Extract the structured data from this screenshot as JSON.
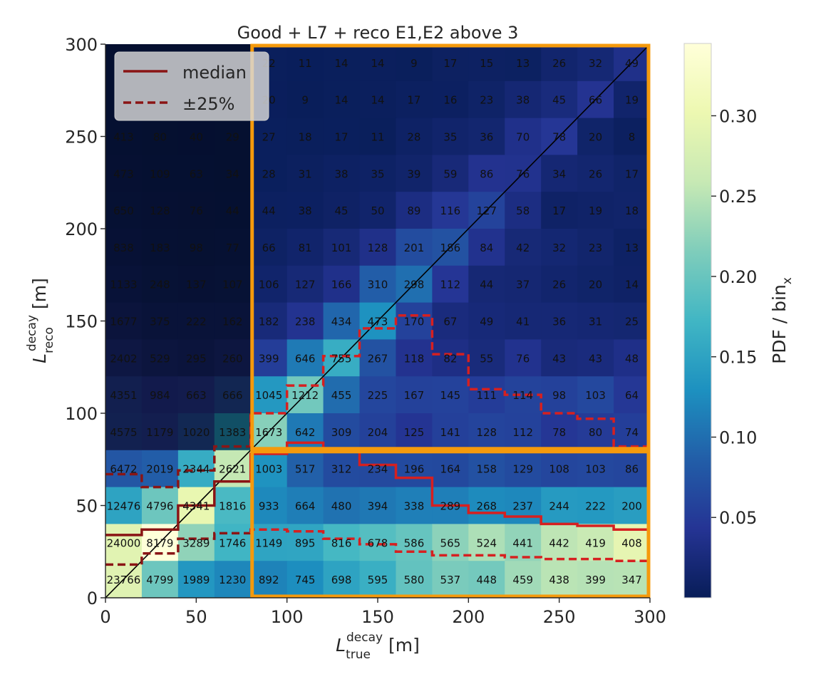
{
  "chart_data": {
    "type": "heatmap",
    "title": "Good + L7 + reco E1,E2 above 3",
    "xlabel": {
      "main": "L",
      "sub": "true",
      "sup": "decay",
      "unit": " [m]"
    },
    "ylabel": {
      "main": "L",
      "sub": "reco",
      "sup": "decay",
      "unit": " [m]"
    },
    "colorbar_label": {
      "main": "PDF / bin",
      "sub": "x"
    },
    "x_edges": [
      0,
      20,
      40,
      60,
      80,
      100,
      120,
      140,
      160,
      180,
      200,
      220,
      240,
      260,
      280,
      300
    ],
    "y_edges": [
      0,
      20,
      40,
      60,
      80,
      100,
      120,
      140,
      160,
      180,
      200,
      220,
      240,
      260,
      280,
      300
    ],
    "xlim": [
      0,
      300
    ],
    "ylim": [
      0,
      300
    ],
    "x_ticks": [
      "0",
      "50",
      "100",
      "150",
      "200",
      "250",
      "300"
    ],
    "y_ticks": [
      "0",
      "50",
      "100",
      "150",
      "200",
      "250",
      "300"
    ],
    "colorbar_range": [
      0,
      0.345
    ],
    "colorbar_ticks": [
      "0.05",
      "0.10",
      "0.15",
      "0.20",
      "0.25",
      "0.30"
    ],
    "counts_rows_top_to_bottom": [
      [
        "",
        "",
        "",
        "",
        "22",
        "11",
        "14",
        "14",
        "9",
        "17",
        "15",
        "13",
        "26",
        "32",
        "49"
      ],
      [
        "",
        "",
        "",
        "",
        "20",
        "9",
        "14",
        "14",
        "17",
        "16",
        "23",
        "38",
        "45",
        "66",
        "19"
      ],
      [
        "413",
        "80",
        "40",
        "29",
        "27",
        "18",
        "17",
        "11",
        "28",
        "35",
        "36",
        "70",
        "78",
        "20",
        "8"
      ],
      [
        "473",
        "109",
        "63",
        "34",
        "28",
        "31",
        "38",
        "35",
        "39",
        "59",
        "86",
        "76",
        "34",
        "26",
        "17"
      ],
      [
        "650",
        "128",
        "76",
        "44",
        "44",
        "38",
        "45",
        "50",
        "89",
        "116",
        "127",
        "58",
        "17",
        "19",
        "18"
      ],
      [
        "838",
        "183",
        "98",
        "77",
        "66",
        "81",
        "101",
        "128",
        "201",
        "186",
        "84",
        "42",
        "32",
        "23",
        "13"
      ],
      [
        "1133",
        "248",
        "137",
        "107",
        "106",
        "127",
        "166",
        "310",
        "298",
        "112",
        "44",
        "37",
        "26",
        "20",
        "14"
      ],
      [
        "1677",
        "375",
        "222",
        "162",
        "182",
        "238",
        "434",
        "473",
        "170",
        "67",
        "49",
        "41",
        "36",
        "31",
        "25"
      ],
      [
        "2402",
        "529",
        "295",
        "260",
        "399",
        "646",
        "755",
        "267",
        "118",
        "82",
        "55",
        "76",
        "43",
        "43",
        "48"
      ],
      [
        "4351",
        "984",
        "663",
        "666",
        "1045",
        "1212",
        "455",
        "225",
        "167",
        "145",
        "111",
        "114",
        "98",
        "103",
        "64"
      ],
      [
        "4575",
        "1179",
        "1020",
        "1383",
        "1673",
        "642",
        "309",
        "204",
        "125",
        "141",
        "128",
        "112",
        "78",
        "80",
        "74"
      ],
      [
        "6472",
        "2019",
        "2344",
        "2621",
        "1003",
        "517",
        "312",
        "234",
        "196",
        "164",
        "158",
        "129",
        "108",
        "103",
        "86"
      ],
      [
        "12476",
        "4796",
        "4341",
        "1816",
        "933",
        "664",
        "480",
        "394",
        "338",
        "289",
        "268",
        "237",
        "244",
        "222",
        "200"
      ],
      [
        "24000",
        "8179",
        "3289",
        "1746",
        "1149",
        "895",
        "816",
        "678",
        "586",
        "565",
        "524",
        "441",
        "442",
        "419",
        "408"
      ],
      [
        "23766",
        "4799",
        "1989",
        "1230",
        "892",
        "745",
        "698",
        "595",
        "580",
        "537",
        "448",
        "459",
        "438",
        "399",
        "347"
      ]
    ],
    "series": [
      {
        "name": "median",
        "style": "solid",
        "x": [
          0,
          20,
          20,
          40,
          40,
          60,
          60,
          80,
          80,
          100,
          100,
          120,
          120,
          140,
          140,
          160,
          160,
          180,
          180,
          200,
          200,
          220,
          220,
          240,
          240,
          260,
          260,
          280,
          280,
          300
        ],
        "y": [
          34,
          34,
          37,
          37,
          50,
          50,
          63,
          63,
          78,
          78,
          84,
          84,
          81,
          81,
          72,
          72,
          65,
          65,
          50,
          50,
          46,
          46,
          44,
          44,
          40,
          40,
          39,
          39,
          37,
          37
        ]
      },
      {
        "name": "±25%",
        "style": "dashed",
        "band": "lower",
        "x": [
          0,
          20,
          20,
          40,
          40,
          60,
          60,
          80,
          80,
          100,
          100,
          120,
          120,
          140,
          140,
          160,
          160,
          180,
          180,
          200,
          200,
          220,
          220,
          240,
          240,
          260,
          260,
          280,
          280,
          300
        ],
        "y": [
          18,
          18,
          24,
          24,
          32,
          32,
          35,
          35,
          37,
          37,
          36,
          36,
          32,
          32,
          29,
          29,
          25,
          25,
          23,
          23,
          23,
          23,
          22,
          22,
          21,
          21,
          21,
          21,
          20,
          20
        ]
      },
      {
        "name": "±25%",
        "style": "dashed",
        "band": "upper",
        "x": [
          0,
          20,
          20,
          40,
          40,
          60,
          60,
          80,
          80,
          100,
          100,
          120,
          120,
          140,
          140,
          160,
          160,
          180,
          180,
          200,
          200,
          220,
          220,
          240,
          240,
          260,
          260,
          280,
          280,
          300
        ],
        "y": [
          67,
          67,
          60,
          60,
          69,
          69,
          82,
          82,
          100,
          100,
          115,
          115,
          131,
          131,
          146,
          146,
          153,
          153,
          132,
          132,
          113,
          113,
          110,
          110,
          100,
          100,
          97,
          97,
          82,
          82
        ]
      }
    ],
    "diagonal": {
      "x": [
        0,
        300
      ],
      "y": [
        0,
        300
      ]
    },
    "regions": [
      {
        "x": [
          80,
          300
        ],
        "y": [
          80,
          300
        ]
      },
      {
        "x": [
          80,
          300
        ],
        "y": [
          0,
          80
        ]
      }
    ],
    "shaded_region": {
      "x": [
        0,
        80
      ],
      "y": [
        80,
        300
      ]
    },
    "legend": {
      "placement": "top-left",
      "entries": [
        "median",
        "±25%"
      ]
    }
  },
  "colors": {
    "median": "#d62020",
    "median_dim": "#8a1515",
    "region_outline": "#f59a0c",
    "diagonal": "#000000"
  }
}
